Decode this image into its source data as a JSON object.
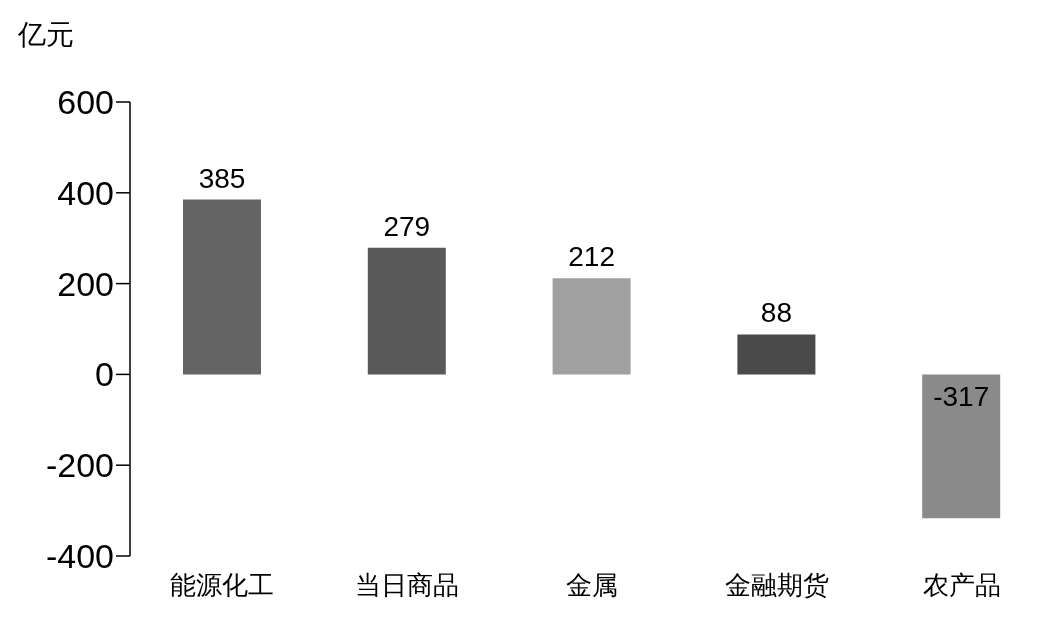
{
  "chart_data": {
    "type": "bar",
    "ylabel": "亿元",
    "categories": [
      "能源化工",
      "当日商品",
      "金属",
      "金融期货",
      "农产品"
    ],
    "values": [
      385,
      279,
      212,
      88,
      -317
    ],
    "colors": [
      "#646464",
      "#595959",
      "#a0a0a0",
      "#4a4a4a",
      "#8a8a8a"
    ],
    "ylim": [
      -400,
      600
    ],
    "yticks": [
      -400,
      -200,
      0,
      200,
      400,
      600
    ],
    "grid": false,
    "data_labels": true
  }
}
